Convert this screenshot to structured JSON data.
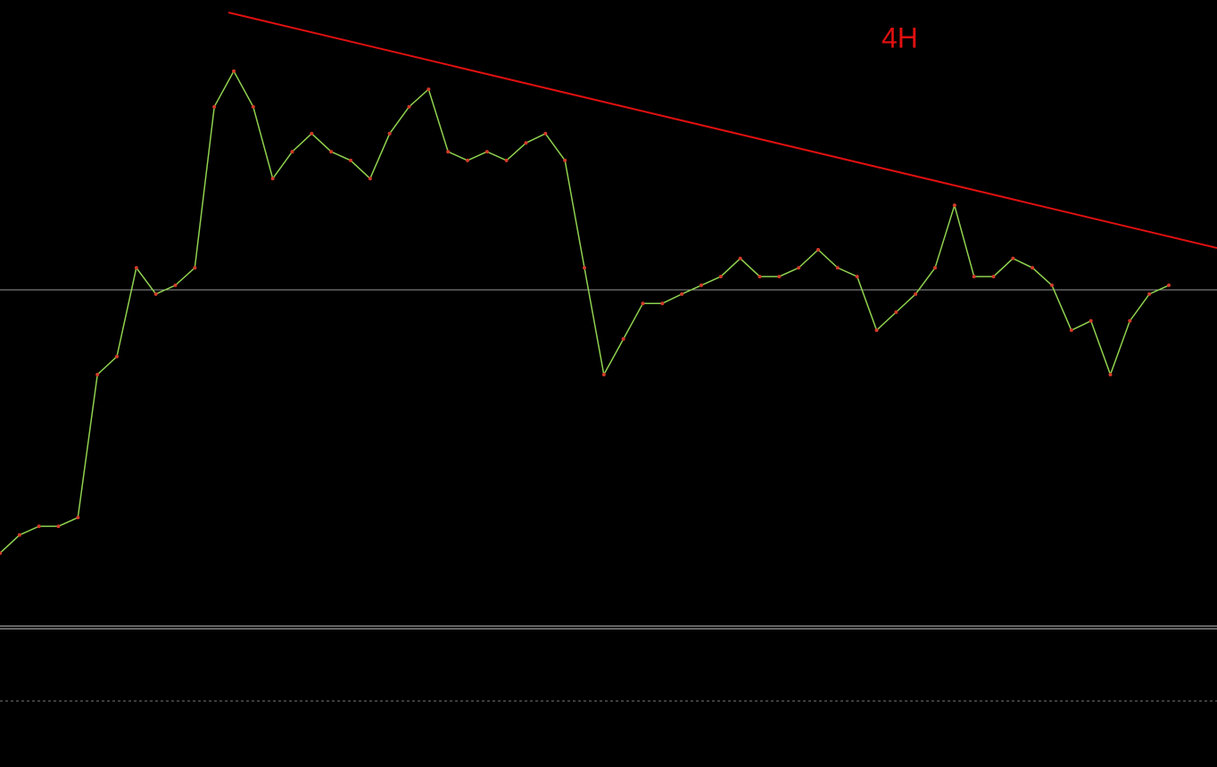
{
  "chart_data": {
    "type": "line",
    "annotation": "4H",
    "color": "#8fd14f",
    "categories": [
      null,
      null,
      null,
      null,
      null,
      null,
      null,
      null,
      null,
      null,
      null,
      null,
      null,
      null,
      null,
      null,
      null,
      null,
      null,
      null,
      null,
      null,
      null,
      null,
      null,
      null,
      null,
      null,
      null,
      null,
      null,
      null,
      null,
      null,
      null,
      null,
      null,
      null,
      null,
      null,
      null,
      null,
      null,
      null,
      null,
      null,
      null,
      null,
      null,
      null,
      null,
      null,
      null,
      null,
      null,
      null,
      null,
      null,
      null,
      null,
      null
    ],
    "values": [
      11.4,
      14.3,
      15.7,
      15.7,
      17.1,
      40,
      42.9,
      57.1,
      52.9,
      54.3,
      57.1,
      82.9,
      88.6,
      82.9,
      71.4,
      75.7,
      78.6,
      75.7,
      74.3,
      71.4,
      78.6,
      82.9,
      85.7,
      75.7,
      74.3,
      75.7,
      74.3,
      77.1,
      78.6,
      74.3,
      57.1,
      40,
      45.7,
      51.4,
      51.4,
      52.9,
      54.3,
      55.7,
      58.6,
      55.7,
      55.7,
      57.1,
      60,
      57.1,
      55.7,
      47.1,
      50,
      52.9,
      57.1,
      67.1,
      55.7,
      55.7,
      58.6,
      57.1,
      54.3,
      47.1,
      48.6,
      40,
      48.6,
      52.9,
      54.3
    ],
    "ylim": [
      0,
      100
    ]
  }
}
